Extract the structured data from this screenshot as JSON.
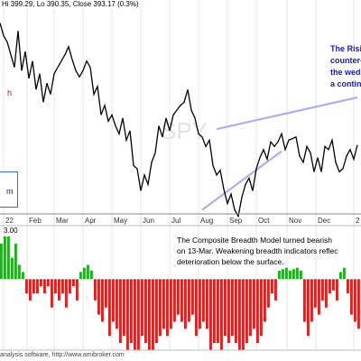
{
  "header": {
    "text": "Hi 399.29, Lo 390.35, Close 393.17 (0.3%)"
  },
  "watermark": "SPY",
  "left_labels": {
    "red_letter": "h",
    "box_letter": "m",
    "year_tick": "22"
  },
  "annotations": {
    "wedge_note": [
      "The Risi",
      "counter-",
      "the wed",
      "a contin"
    ],
    "breadth_note": [
      "The Composite Breadth Model turned bearish",
      "on 13-Mar. Weakening breadth indicators reflec",
      "deterioration below the surface."
    ]
  },
  "lower_panel": {
    "label": "3.00"
  },
  "footer": {
    "text": "analysis software, http://www.amibroker.com"
  },
  "colors": {
    "price_line": "#000000",
    "wedge": "#aab0ee",
    "positive_bar": "#20b020",
    "negative_bar": "#dd2020",
    "note_text": "#1a1ab0",
    "box_border": "#2e6fd8",
    "red_text": "#cc1111"
  },
  "chart_data": [
    {
      "type": "line",
      "title": "",
      "xlabel": "",
      "ylabel": "",
      "x_tick_labels": [
        "22",
        "Feb",
        "Mar",
        "Apr",
        "May",
        "Jun",
        "Jul",
        "Aug",
        "Sep",
        "Oct",
        "Nov",
        "Dec",
        "2"
      ],
      "ylim": [
        350,
        480
      ],
      "x": [
        0,
        1,
        2,
        3,
        4,
        5,
        6,
        7,
        8,
        9,
        10,
        11,
        12,
        13,
        14,
        15,
        16,
        17,
        18,
        19,
        20,
        21,
        22,
        23,
        24,
        25,
        26,
        27,
        28,
        29,
        30,
        31,
        32,
        33,
        34,
        35,
        36,
        37,
        38,
        39,
        40,
        41,
        42,
        43,
        44,
        45,
        46,
        47,
        48,
        49,
        50,
        51,
        52,
        53,
        54,
        55,
        56,
        57,
        58,
        59,
        60,
        61,
        62,
        63,
        64,
        65,
        66,
        67,
        68,
        69,
        70,
        71,
        72,
        73,
        74,
        75,
        76,
        77,
        78,
        79,
        80,
        81,
        82,
        83,
        84,
        85,
        86,
        87,
        88,
        89,
        90,
        91,
        92,
        93,
        94,
        95,
        96,
        97,
        98,
        99
      ],
      "values": [
        470,
        462,
        458,
        450,
        442,
        465,
        440,
        452,
        435,
        446,
        428,
        438,
        420,
        432,
        425,
        438,
        442,
        446,
        450,
        455,
        447,
        440,
        436,
        440,
        446,
        442,
        425,
        430,
        412,
        418,
        408,
        412,
        405,
        400,
        410,
        396,
        402,
        380,
        378,
        364,
        374,
        368,
        382,
        388,
        405,
        398,
        410,
        402,
        412,
        415,
        418,
        420,
        428,
        415,
        410,
        400,
        398,
        392,
        396,
        380,
        374,
        377,
        365,
        356,
        362,
        352,
        348,
        360,
        368,
        372,
        364,
        378,
        385,
        390,
        384,
        395,
        392,
        395,
        400,
        390,
        396,
        397,
        398,
        386,
        382,
        392,
        388,
        376,
        385,
        376,
        392,
        390,
        396,
        382,
        376,
        378,
        386,
        390,
        384,
        393
      ],
      "wedge_lines": [
        {
          "name": "",
          "x": [
            56,
            78
          ],
          "y": [
            352,
            389
          ]
        },
        {
          "name": "",
          "x": [
            60,
            99
          ],
          "y": [
            403,
            423
          ]
        }
      ]
    },
    {
      "type": "bar",
      "title": "",
      "ylim": [
        -5,
        3
      ],
      "categories_count": 100,
      "values": [
        2.5,
        3,
        3,
        1.5,
        2.5,
        1,
        0.5,
        -1,
        -1.5,
        -1,
        -1,
        -0.5,
        -1,
        -0.5,
        -2,
        -1,
        -1.5,
        -1,
        -2,
        -1,
        -0.5,
        -1.5,
        0.5,
        0.8,
        1,
        0.6,
        -1.5,
        -2.5,
        -3,
        -2,
        -4,
        -3,
        -3.5,
        -4.5,
        -4,
        -5,
        -4.5,
        -5,
        -5,
        -4,
        -4.5,
        -5,
        -5,
        -4.5,
        -4,
        -3.5,
        -4,
        -3.5,
        -3,
        -2.5,
        -3,
        -3.5,
        -3,
        -2.5,
        -4,
        -3.5,
        -3,
        -3.5,
        -5,
        -4.5,
        -4.5,
        -5,
        -4,
        -4.5,
        -4,
        -4.5,
        -5,
        -5,
        -4.5,
        -4,
        -3.5,
        -4.5,
        -4,
        -3,
        -2,
        -1,
        -1.5,
        0.6,
        0.7,
        0.8,
        0.6,
        0.7,
        0.8,
        0.6,
        -3,
        -4,
        -3,
        -2,
        -2.5,
        -1.5,
        -2,
        -1,
        -0.8,
        -1.5,
        0.5,
        0.8,
        -1,
        -2.5,
        -3,
        -3.5
      ]
    }
  ]
}
